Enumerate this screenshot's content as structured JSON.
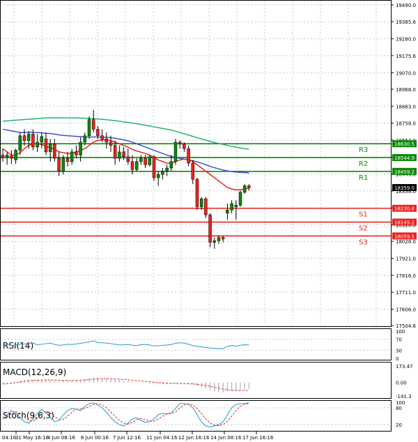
{
  "chart_data": [
    {
      "type": "candlestick",
      "title": "",
      "ylim": [
        17504.6,
        19490.0
      ],
      "ytick_labels": [
        "19490.0",
        "19385.6",
        "19280.0",
        "19175.6",
        "19070.0",
        "18968.0",
        "18863.0",
        "18758.0",
        "18653.0",
        "18548.0",
        "18443.0",
        "18338.0",
        "18233.0",
        "18128.0",
        "18026.0",
        "17921.0",
        "17816.0",
        "17711.0",
        "17606.0",
        "17504.6"
      ],
      "xtick_labels": [
        "04:16",
        "31 May 16:16",
        "4 Jun 08:16",
        "6 Jun 00:16",
        "7 Jun 12:16",
        "11 Jun 04:16",
        "12 Jun 16:16",
        "14 Jun 08:16",
        "17 Jun 16:16"
      ],
      "current_price": {
        "label": "18359.0",
        "value": 18359.0,
        "color": "#000000"
      },
      "levels": [
        {
          "name": "R3",
          "label": "18630.5",
          "value": 18630.5,
          "color": "#0a8a0a"
        },
        {
          "name": "R2",
          "label": "18544.9",
          "value": 18544.9,
          "color": "#0a8a0a"
        },
        {
          "name": "R1",
          "label": "18459.2",
          "value": 18459.2,
          "color": "#0a8a0a"
        },
        {
          "name": "S1",
          "label": "18230.8",
          "value": 18230.8,
          "color": "#e8231e"
        },
        {
          "name": "S2",
          "label": "18145.2",
          "value": 18145.2,
          "color": "#e8231e"
        },
        {
          "name": "S3",
          "label": "18059.5",
          "value": 18059.5,
          "color": "#e8231e"
        }
      ],
      "up_color": "#0a8a0a",
      "down_color": "#e8231e",
      "candles": [
        {
          "o": 18560,
          "h": 18600,
          "l": 18520,
          "c": 18545
        },
        {
          "o": 18545,
          "h": 18580,
          "l": 18500,
          "c": 18560
        },
        {
          "o": 18555,
          "h": 18590,
          "l": 18505,
          "c": 18540
        },
        {
          "o": 18530,
          "h": 18600,
          "l": 18505,
          "c": 18590
        },
        {
          "o": 18590,
          "h": 18700,
          "l": 18560,
          "c": 18680
        },
        {
          "o": 18680,
          "h": 18720,
          "l": 18620,
          "c": 18650
        },
        {
          "o": 18650,
          "h": 18710,
          "l": 18600,
          "c": 18690
        },
        {
          "o": 18690,
          "h": 18720,
          "l": 18590,
          "c": 18610
        },
        {
          "o": 18610,
          "h": 18690,
          "l": 18580,
          "c": 18640
        },
        {
          "o": 18640,
          "h": 18700,
          "l": 18600,
          "c": 18675
        },
        {
          "o": 18660,
          "h": 18700,
          "l": 18560,
          "c": 18580
        },
        {
          "o": 18580,
          "h": 18660,
          "l": 18520,
          "c": 18630
        },
        {
          "o": 18630,
          "h": 18660,
          "l": 18520,
          "c": 18540
        },
        {
          "o": 18540,
          "h": 18580,
          "l": 18430,
          "c": 18460
        },
        {
          "o": 18460,
          "h": 18560,
          "l": 18440,
          "c": 18540
        },
        {
          "o": 18540,
          "h": 18580,
          "l": 18490,
          "c": 18520
        },
        {
          "o": 18520,
          "h": 18600,
          "l": 18500,
          "c": 18580
        },
        {
          "o": 18580,
          "h": 18620,
          "l": 18540,
          "c": 18560
        },
        {
          "o": 18560,
          "h": 18670,
          "l": 18520,
          "c": 18640
        },
        {
          "o": 18640,
          "h": 18700,
          "l": 18620,
          "c": 18680
        },
        {
          "o": 18680,
          "h": 18800,
          "l": 18660,
          "c": 18780
        },
        {
          "o": 18780,
          "h": 18840,
          "l": 18700,
          "c": 18720
        },
        {
          "o": 18720,
          "h": 18740,
          "l": 18660,
          "c": 18680
        },
        {
          "o": 18680,
          "h": 18720,
          "l": 18640,
          "c": 18660
        },
        {
          "o": 18660,
          "h": 18700,
          "l": 18600,
          "c": 18640
        },
        {
          "o": 18640,
          "h": 18680,
          "l": 18580,
          "c": 18620
        },
        {
          "o": 18620,
          "h": 18650,
          "l": 18500,
          "c": 18540
        },
        {
          "o": 18540,
          "h": 18620,
          "l": 18520,
          "c": 18580
        },
        {
          "o": 18580,
          "h": 18610,
          "l": 18530,
          "c": 18550
        },
        {
          "o": 18550,
          "h": 18600,
          "l": 18500,
          "c": 18520
        },
        {
          "o": 18520,
          "h": 18560,
          "l": 18440,
          "c": 18470
        },
        {
          "o": 18470,
          "h": 18540,
          "l": 18460,
          "c": 18520
        },
        {
          "o": 18520,
          "h": 18560,
          "l": 18500,
          "c": 18540
        },
        {
          "o": 18540,
          "h": 18560,
          "l": 18480,
          "c": 18500
        },
        {
          "o": 18500,
          "h": 18560,
          "l": 18490,
          "c": 18550
        },
        {
          "o": 18550,
          "h": 18560,
          "l": 18400,
          "c": 18420
        },
        {
          "o": 18420,
          "h": 18460,
          "l": 18370,
          "c": 18440
        },
        {
          "o": 18440,
          "h": 18480,
          "l": 18410,
          "c": 18460
        },
        {
          "o": 18460,
          "h": 18500,
          "l": 18430,
          "c": 18480
        },
        {
          "o": 18480,
          "h": 18560,
          "l": 18460,
          "c": 18520
        },
        {
          "o": 18520,
          "h": 18660,
          "l": 18500,
          "c": 18640
        },
        {
          "o": 18640,
          "h": 18650,
          "l": 18600,
          "c": 18630
        },
        {
          "o": 18630,
          "h": 18640,
          "l": 18580,
          "c": 18600
        },
        {
          "o": 18600,
          "h": 18620,
          "l": 18490,
          "c": 18510
        },
        {
          "o": 18510,
          "h": 18530,
          "l": 18380,
          "c": 18410
        },
        {
          "o": 18410,
          "h": 18420,
          "l": 18220,
          "c": 18240
        },
        {
          "o": 18240,
          "h": 18300,
          "l": 18220,
          "c": 18290
        },
        {
          "o": 18290,
          "h": 18300,
          "l": 18170,
          "c": 18190
        },
        {
          "o": 18190,
          "h": 18200,
          "l": 17990,
          "c": 18020
        },
        {
          "o": 18020,
          "h": 18050,
          "l": 17980,
          "c": 18030
        },
        {
          "o": 18030,
          "h": 18060,
          "l": 18010,
          "c": 18050
        },
        {
          "o": 18050,
          "h": 18060,
          "l": 18020,
          "c": 18040
        },
        {
          "o": 18200,
          "h": 18260,
          "l": 18160,
          "c": 18220
        },
        {
          "o": 18220,
          "h": 18280,
          "l": 18200,
          "c": 18260
        },
        {
          "o": 18240,
          "h": 18280,
          "l": 18160,
          "c": 18250
        },
        {
          "o": 18250,
          "h": 18340,
          "l": 18240,
          "c": 18330
        },
        {
          "o": 18330,
          "h": 18380,
          "l": 18320,
          "c": 18370
        },
        {
          "o": 18370,
          "h": 18380,
          "l": 18340,
          "c": 18359
        }
      ],
      "ma_fast_color": "#e8231e",
      "ma_fast": [
        18600,
        18580,
        18560,
        18560,
        18575,
        18600,
        18620,
        18630,
        18630,
        18625,
        18615,
        18605,
        18595,
        18580,
        18575,
        18570,
        18572,
        18580,
        18590,
        18600,
        18620,
        18640,
        18650,
        18655,
        18655,
        18650,
        18640,
        18630,
        18620,
        18610,
        18595,
        18585,
        18578,
        18570,
        18560,
        18545,
        18530,
        18520,
        18510,
        18510,
        18520,
        18530,
        18535,
        18530,
        18520,
        18500,
        18480,
        18460,
        18440,
        18420,
        18400,
        18380,
        18360,
        18350,
        18345,
        18345,
        18350,
        18355
      ],
      "ma_mid_color": "#3b4fd8",
      "ma_mid": [
        18720,
        18715,
        18710,
        18705,
        18700,
        18700,
        18702,
        18700,
        18700,
        18698,
        18695,
        18693,
        18690,
        18685,
        18682,
        18680,
        18678,
        18676,
        18674,
        18672,
        18672,
        18672,
        18672,
        18672,
        18670,
        18668,
        18664,
        18660,
        18655,
        18648,
        18640,
        18630,
        18620,
        18610,
        18600,
        18590,
        18580,
        18570,
        18560,
        18552,
        18545,
        18540,
        18535,
        18530,
        18525,
        18518,
        18510,
        18500,
        18490,
        18482,
        18475,
        18468,
        18462,
        18458,
        18455,
        18453,
        18452,
        18450
      ],
      "ma_slow_color": "#27b36a",
      "ma_slow": [
        18770,
        18772,
        18774,
        18776,
        18778,
        18780,
        18782,
        18784,
        18786,
        18788,
        18790,
        18790,
        18790,
        18790,
        18790,
        18790,
        18790,
        18790,
        18789,
        18788,
        18787,
        18786,
        18784,
        18782,
        18779,
        18776,
        18773,
        18770,
        18766,
        18762,
        18758,
        18754,
        18750,
        18745,
        18740,
        18735,
        18730,
        18725,
        18720,
        18715,
        18708,
        18700,
        18692,
        18684,
        18676,
        18668,
        18660,
        18652,
        18645,
        18638,
        18632,
        18626,
        18620,
        18614,
        18609,
        18604,
        18600,
        18596
      ]
    },
    {
      "type": "line",
      "title": "RSI(14)",
      "ylim": [
        0,
        100
      ],
      "ytick_labels": [
        "100",
        "70",
        "30",
        "0"
      ],
      "levels": [
        70,
        30
      ],
      "series": [
        {
          "name": "RSI",
          "color": "#1b9cd8",
          "values": [
            48,
            50,
            47,
            49,
            52,
            53,
            55,
            56,
            50,
            52,
            54,
            56,
            51,
            48,
            49,
            52,
            51,
            53,
            55,
            58,
            60,
            64,
            58,
            57,
            56,
            54,
            52,
            49,
            50,
            51,
            48,
            47,
            50,
            51,
            49,
            46,
            46,
            48,
            49,
            51,
            55,
            57,
            56,
            52,
            47,
            44,
            42,
            40,
            38,
            37,
            36,
            36,
            44,
            47,
            45,
            48,
            50,
            49
          ]
        }
      ]
    },
    {
      "type": "bar",
      "title": "MACD(12,26,9)",
      "ylim": [
        -141.3,
        173.47
      ],
      "ytick_labels": [
        "173.47",
        "0.00",
        "-141.3"
      ],
      "bar_color": "#b0b0b0",
      "values": [
        -10,
        -5,
        5,
        10,
        20,
        30,
        35,
        30,
        28,
        30,
        32,
        25,
        20,
        15,
        18,
        20,
        22,
        25,
        30,
        35,
        45,
        50,
        48,
        45,
        40,
        35,
        30,
        25,
        20,
        15,
        10,
        5,
        0,
        -5,
        -10,
        -15,
        -20,
        -20,
        -18,
        -15,
        -10,
        -5,
        -5,
        -10,
        -20,
        -35,
        -50,
        -60,
        -80,
        -90,
        -100,
        -105,
        -95,
        -90,
        -85,
        -80,
        -75,
        -70
      ],
      "signal_color": "#e8231e",
      "signal": [
        -15,
        -12,
        -8,
        -2,
        5,
        12,
        18,
        22,
        24,
        26,
        27,
        27,
        26,
        24,
        22,
        21,
        21,
        22,
        24,
        27,
        31,
        36,
        40,
        42,
        42,
        41,
        39,
        36,
        32,
        28,
        24,
        20,
        16,
        12,
        8,
        4,
        0,
        -4,
        -7,
        -9,
        -10,
        -10,
        -11,
        -12,
        -15,
        -19,
        -25,
        -32,
        -40,
        -50,
        -60,
        -70,
        -76,
        -80,
        -83,
        -84,
        -84,
        -83
      ]
    },
    {
      "type": "line",
      "title": "Stoch(9,6,3)",
      "ylim": [
        0,
        100
      ],
      "ytick_labels": [
        "100",
        "80",
        "20"
      ],
      "levels": [
        80,
        20
      ],
      "series": [
        {
          "name": "%K",
          "color": "#1b9cd8",
          "values": [
            40,
            55,
            70,
            62,
            45,
            30,
            25,
            40,
            60,
            75,
            62,
            45,
            30,
            35,
            55,
            70,
            78,
            75,
            70,
            85,
            95,
            98,
            90,
            80,
            65,
            45,
            30,
            20,
            15,
            25,
            40,
            45,
            35,
            28,
            30,
            40,
            55,
            60,
            58,
            62,
            78,
            95,
            96,
            92,
            80,
            55,
            30,
            15,
            12,
            15,
            20,
            30,
            55,
            80,
            92,
            95,
            96,
            98
          ]
        },
        {
          "name": "%D",
          "color": "#e8231e",
          "values": [
            45,
            48,
            58,
            66,
            60,
            48,
            35,
            32,
            42,
            58,
            68,
            62,
            48,
            38,
            38,
            50,
            64,
            75,
            76,
            78,
            85,
            92,
            95,
            90,
            80,
            65,
            50,
            35,
            25,
            22,
            28,
            38,
            42,
            38,
            33,
            32,
            40,
            50,
            58,
            60,
            65,
            80,
            90,
            94,
            90,
            78,
            60,
            40,
            25,
            18,
            16,
            20,
            32,
            50,
            70,
            86,
            93,
            96
          ]
        }
      ]
    }
  ]
}
